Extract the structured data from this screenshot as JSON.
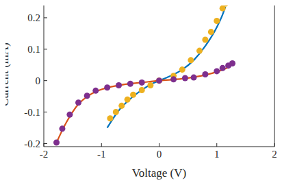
{
  "chart_data": {
    "type": "scatter",
    "x_label": "Voltage (V)",
    "y_label": "Current (mA)",
    "xlim": [
      -2,
      2
    ],
    "xticks": [
      -2,
      -1,
      0,
      1,
      2
    ],
    "ylim": [
      -0.21,
      0.25
    ],
    "yticks": [
      -0.2,
      -0.1,
      0,
      0.1,
      0.2
    ],
    "grid": false,
    "series": [
      {
        "type": "line",
        "color": "#0072BD",
        "line_style": "solid",
        "x": [
          -0.9,
          -0.7,
          -0.5,
          -0.3,
          -0.1,
          0,
          0.2,
          0.4,
          0.6,
          0.8,
          1.0,
          1.1,
          1.15
        ],
        "values": [
          -0.15,
          -0.095,
          -0.058,
          -0.03,
          -0.008,
          0,
          0.015,
          0.035,
          0.065,
          0.11,
          0.17,
          0.21,
          0.235
        ]
      },
      {
        "type": "scatter",
        "color": "#EDB120",
        "marker": "circle",
        "x": [
          -0.85,
          -0.75,
          -0.65,
          -0.55,
          -0.45,
          -0.3,
          -0.15,
          0,
          0.25,
          0.4,
          0.55,
          0.7,
          0.8,
          0.9,
          1.0,
          1.1,
          1.15
        ],
        "values": [
          -0.12,
          -0.1,
          -0.08,
          -0.06,
          -0.045,
          -0.03,
          -0.015,
          0,
          0.015,
          0.035,
          0.065,
          0.095,
          0.13,
          0.155,
          0.19,
          0.23,
          0.245
        ]
      },
      {
        "type": "line",
        "color": "#D95319",
        "line_style": "solid",
        "x": [
          -1.8,
          -1.6,
          -1.4,
          -1.2,
          -1.0,
          -0.6,
          -0.2,
          0,
          0.4,
          0.8,
          1.0,
          1.2
        ],
        "values": [
          -0.205,
          -0.13,
          -0.075,
          -0.045,
          -0.028,
          -0.012,
          -0.004,
          0,
          0.006,
          0.018,
          0.028,
          0.042
        ]
      },
      {
        "type": "scatter",
        "color": "#7E2F8E",
        "marker": "circle",
        "x": [
          -1.78,
          -1.68,
          -1.55,
          -1.4,
          -1.25,
          -1.1,
          -0.9,
          -0.7,
          -0.5,
          -0.3,
          0,
          0.25,
          0.45,
          0.6,
          0.8,
          1.0,
          1.1,
          1.2,
          1.27
        ],
        "values": [
          -0.197,
          -0.153,
          -0.108,
          -0.07,
          -0.048,
          -0.032,
          -0.022,
          -0.015,
          -0.01,
          -0.006,
          0,
          0.004,
          0.008,
          0.01,
          0.02,
          0.03,
          0.04,
          0.048,
          0.055
        ]
      }
    ]
  }
}
